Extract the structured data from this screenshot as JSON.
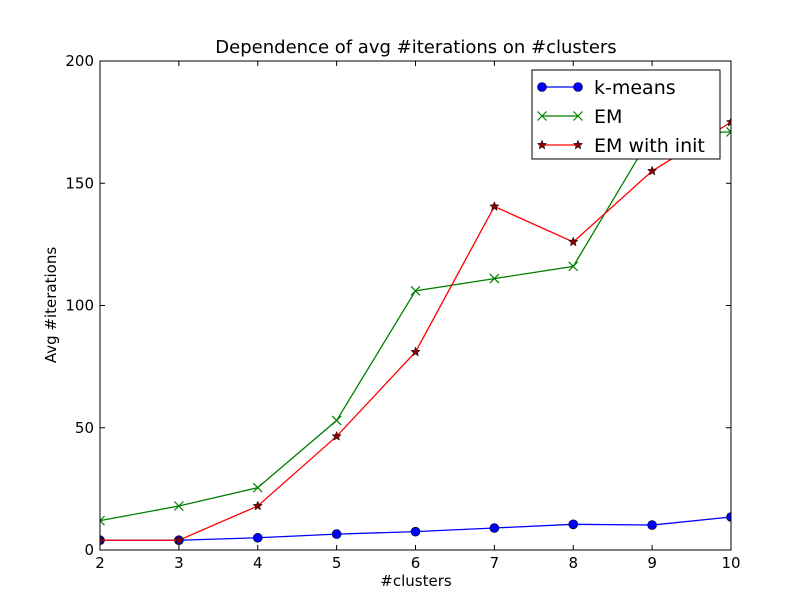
{
  "chart_data": {
    "type": "line",
    "title": "Dependence of avg #iterations on #clusters",
    "xlabel": "#clusters",
    "ylabel": "Avg #iterations",
    "xlim": [
      2,
      10
    ],
    "ylim": [
      0,
      200
    ],
    "xticks": [
      "2",
      "3",
      "4",
      "5",
      "6",
      "7",
      "8",
      "9",
      "10"
    ],
    "yticks": [
      "0",
      "50",
      "100",
      "150",
      "200"
    ],
    "grid": false,
    "legend_position": "top-right",
    "x": [
      2,
      3,
      4,
      5,
      6,
      7,
      8,
      9,
      10
    ],
    "series": [
      {
        "name": "k-means",
        "values": [
          4,
          4,
          5,
          6.5,
          7.5,
          9,
          10.5,
          10.2,
          13.5
        ],
        "color": "#0000ff",
        "marker": "circle"
      },
      {
        "name": "EM",
        "values": [
          12,
          18,
          25.5,
          53,
          106,
          111,
          116,
          170,
          171
        ],
        "color": "#008000",
        "marker": "x"
      },
      {
        "name": "EM with init",
        "values": [
          4,
          4,
          18,
          46.5,
          81,
          140.5,
          126,
          155,
          175
        ],
        "color": "#ff0000",
        "marker": "star"
      }
    ]
  }
}
